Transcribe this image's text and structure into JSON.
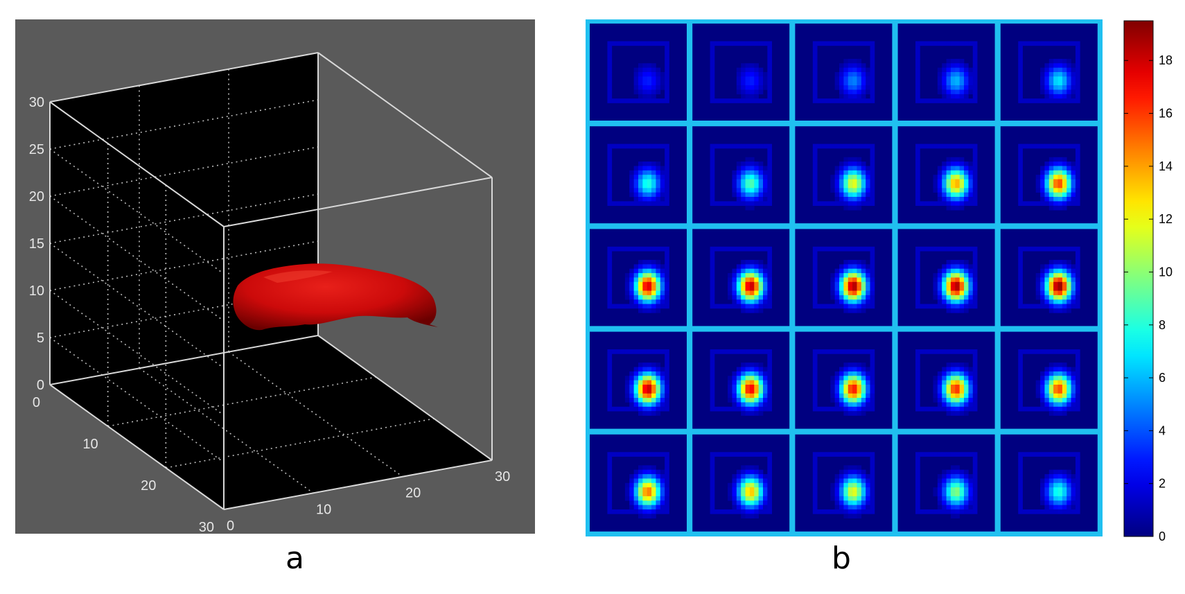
{
  "panel_labels": {
    "a": "a",
    "b": "b"
  },
  "colors": {
    "figure_bg": "#5a5a5a",
    "axes_bg": "#000000",
    "isosurface": "#cc0a0a",
    "grid_border": "#20c0f0"
  },
  "chart_data": [
    {
      "type": "isosurface-3d",
      "panel": "a",
      "axes": {
        "x": {
          "ticks": [
            0,
            10,
            20,
            30
          ],
          "range": [
            0,
            30
          ]
        },
        "y": {
          "ticks": [
            0,
            10,
            20,
            30
          ],
          "range": [
            0,
            30
          ]
        },
        "z": {
          "ticks": [
            0,
            5,
            10,
            15,
            20,
            25,
            30
          ],
          "range": [
            0,
            30
          ]
        }
      },
      "grid": true,
      "object": {
        "shape": "elongated blob",
        "color": "#cc0a0a",
        "z_extent": [
          5,
          11
        ]
      }
    },
    {
      "type": "heatmap",
      "panel": "b",
      "rows": 5,
      "cols": 5,
      "colormap": "jet",
      "colorbar": {
        "ticks": [
          0,
          2,
          4,
          6,
          8,
          10,
          12,
          14,
          16,
          18
        ],
        "range": [
          0,
          19.5
        ]
      },
      "tiles_peak": [
        [
          3,
          3,
          5,
          6,
          7
        ],
        [
          8,
          9,
          12,
          14,
          16
        ],
        [
          18,
          18.5,
          19,
          19,
          19.5
        ],
        [
          18.5,
          17.5,
          17,
          16.5,
          16
        ],
        [
          15,
          13.5,
          12,
          10,
          8
        ]
      ]
    }
  ]
}
